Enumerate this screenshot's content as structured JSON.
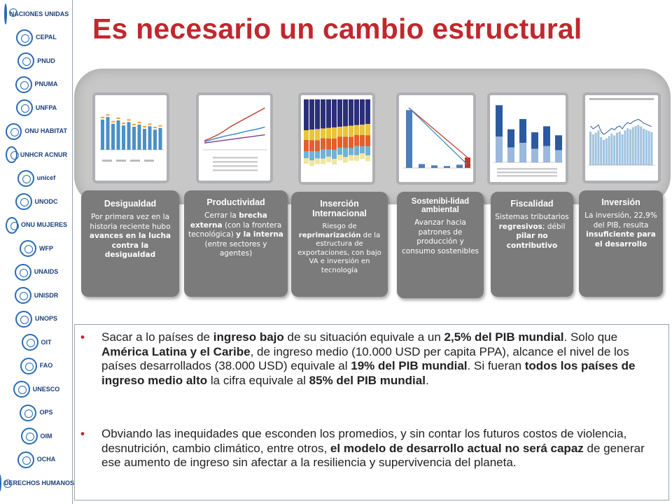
{
  "title": "Es necesario un cambio estructural",
  "logos": [
    {
      "icon": "un-emblem-icon",
      "label": "NACIONES UNIDAS"
    },
    {
      "icon": "cepal-logo-icon",
      "label": "CEPAL"
    },
    {
      "icon": "undp-logo-icon",
      "label": "PNUD"
    },
    {
      "icon": "unep-logo-icon",
      "label": "PNUMA"
    },
    {
      "icon": "unfpa-logo-icon",
      "label": "UNFPA"
    },
    {
      "icon": "unhabitat-logo-icon",
      "label": "ONU HABITAT"
    },
    {
      "icon": "unhcr-logo-icon",
      "label": "UNHCR ACNUR"
    },
    {
      "icon": "unicef-logo-icon",
      "label": "unicef"
    },
    {
      "icon": "unodc-logo-icon",
      "label": "UNODC"
    },
    {
      "icon": "unwomen-logo-icon",
      "label": "ONU MUJERES"
    },
    {
      "icon": "wfp-logo-icon",
      "label": "WFP"
    },
    {
      "icon": "unaids-logo-icon",
      "label": "UNAIDS"
    },
    {
      "icon": "unisdr-logo-icon",
      "label": "UNISDR"
    },
    {
      "icon": "unops-logo-icon",
      "label": "UNOPS"
    },
    {
      "icon": "ilo-logo-icon",
      "label": "OIT"
    },
    {
      "icon": "fao-logo-icon",
      "label": "FAO"
    },
    {
      "icon": "unesco-logo-icon",
      "label": "UNESCO"
    },
    {
      "icon": "paho-logo-icon",
      "label": "OPS"
    },
    {
      "icon": "iom-logo-icon",
      "label": "OIM"
    },
    {
      "icon": "ocha-logo-icon",
      "label": "OCHA"
    },
    {
      "icon": "ohchr-logo-icon",
      "label": "DERECHOS HUMANOS"
    }
  ],
  "cards": [
    {
      "title": "Desigualdad",
      "body": [
        {
          "t": "Por primera vez en la historia reciente hubo ",
          "b": false
        },
        {
          "t": "avances en la lucha contra la desigualdad",
          "b": true
        }
      ]
    },
    {
      "title": "Productividad",
      "body": [
        {
          "t": "Cerrar la ",
          "b": false
        },
        {
          "t": "brecha externa",
          "b": true
        },
        {
          "t": " (con la frontera tecnológica) ",
          "b": false
        },
        {
          "t": "y la interna",
          "b": true
        },
        {
          "t": " (entre sectores y agentes)",
          "b": false
        }
      ]
    },
    {
      "title": "Inserción Internacional",
      "body": [
        {
          "t": "Riesgo de ",
          "b": false
        },
        {
          "t": "reprimarización",
          "b": true
        },
        {
          "t": " de la estructura de exportaciones, con bajo VA e inversión en tecnología",
          "b": false
        }
      ]
    },
    {
      "title": "Sostenibi-lidad ambiental",
      "body": [
        {
          "t": "Avanzar hacia patrones de producción y consumo sostenibles",
          "b": false
        }
      ]
    },
    {
      "title": "Fiscalidad",
      "body": [
        {
          "t": "Sistemas tributarios ",
          "b": false
        },
        {
          "t": "regresivos",
          "b": true
        },
        {
          "t": "; débil ",
          "b": false
        },
        {
          "t": "pilar no contributivo",
          "b": true
        }
      ]
    },
    {
      "title": "Inversión",
      "body": [
        {
          "t": "La inversión, 22,9% del PIB, resulta ",
          "b": false
        },
        {
          "t": "insuficiente para el desarrollo",
          "b": true
        }
      ]
    }
  ],
  "thumbnails": {
    "desigualdad": {
      "bars": [
        0.72,
        0.78,
        0.62,
        0.7,
        0.58,
        0.66,
        0.55,
        0.6,
        0.5,
        0.56,
        0.48,
        0.52
      ],
      "accent": "#f0a030"
    },
    "productividad": {
      "lines": [
        [
          0.2,
          0.26,
          0.33,
          0.42,
          0.52,
          0.6,
          0.68,
          0.76,
          0.84,
          0.92
        ],
        [
          0.18,
          0.22,
          0.26,
          0.3,
          0.33,
          0.36,
          0.4,
          0.43,
          0.46,
          0.5
        ],
        [
          0.15,
          0.17,
          0.19,
          0.21,
          0.23,
          0.25,
          0.27,
          0.29,
          0.31,
          0.33
        ]
      ]
    },
    "insercion": {
      "colors": [
        "#2b2f7a",
        "#e8c53a",
        "#e3602b",
        "#6fb2d8",
        "#f0e6a0"
      ]
    },
    "sostenibilidad": {
      "bars": [
        0.88,
        0.06,
        0.04,
        0.03,
        0.05,
        0.16
      ]
    },
    "fiscalidad": {
      "bars": [
        0.95,
        0.55,
        0.72,
        0.5,
        0.6,
        0.45
      ]
    },
    "inversion": {
      "bars": [
        0.6,
        0.55,
        0.58,
        0.62,
        0.5,
        0.45,
        0.48,
        0.52,
        0.56,
        0.53,
        0.58,
        0.6,
        0.55,
        0.62,
        0.66,
        0.64,
        0.68,
        0.7,
        0.72,
        0.69,
        0.65,
        0.63,
        0.61,
        0.59
      ]
    }
  },
  "bullets": [
    [
      {
        "t": "Sacar a lo países de ",
        "b": false
      },
      {
        "t": "ingreso bajo",
        "b": true
      },
      {
        "t": " de su situación equivale a un ",
        "b": false
      },
      {
        "t": "2,5% del PIB mundial",
        "b": true
      },
      {
        "t": ". Solo que ",
        "b": false
      },
      {
        "t": "América Latina y el Caribe",
        "b": true
      },
      {
        "t": ", de ingreso medio (10.000 USD per capita PPA), alcance el nivel de los países desarrollados (38.000 USD) equivale al ",
        "b": false
      },
      {
        "t": "19% del PIB mundial",
        "b": true
      },
      {
        "t": ". Si fueran ",
        "b": false
      },
      {
        "t": "todos los países de ingreso medio alto",
        "b": true
      },
      {
        "t": " la cifra equivale al ",
        "b": false
      },
      {
        "t": "85% del PIB mundial",
        "b": true
      },
      {
        "t": ".",
        "b": false
      }
    ],
    [
      {
        "t": "Obviando las inequidades que esconden los promedios, y sin contar los futuros costos de violencia, desnutrición, cambio climático, entre otros, ",
        "b": false
      },
      {
        "t": "el modelo de desarrollo actual no será capaz",
        "b": true
      },
      {
        "t": " de generar ese aumento de ingreso sin afectar a la resiliencia y supervivencia del planeta.",
        "b": false
      }
    ]
  ],
  "colors": {
    "title": "#c0282d",
    "bullet": "#c0282d",
    "card": "#7b7b7b",
    "panel": "#c7c7c7"
  }
}
